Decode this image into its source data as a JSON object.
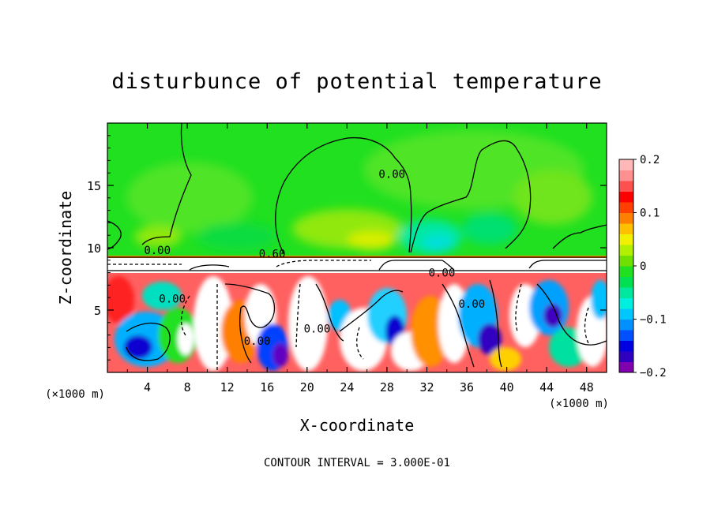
{
  "chart_data": {
    "type": "heatmap",
    "title": "disturbunce of potential temperature",
    "xlabel": "X-coordinate",
    "ylabel": "Z-coordinate",
    "x_unit": "(×1000 m)",
    "z_unit": "(×1000 m)",
    "xlim": [
      0,
      50
    ],
    "ylim": [
      0,
      20
    ],
    "x_ticks": [
      4,
      8,
      12,
      16,
      20,
      24,
      28,
      32,
      36,
      40,
      44,
      48
    ],
    "y_ticks": [
      5,
      10,
      15
    ],
    "colorbar": {
      "range": [
        -0.2,
        0.2
      ],
      "ticks": [
        0.2,
        0.1,
        0,
        -0.1,
        -0.2
      ],
      "tick_labels": [
        "0.2",
        "0.1",
        "0",
        "−0.1",
        "−0.2"
      ],
      "colors": [
        "#8000b0",
        "#3000c0",
        "#0000e0",
        "#0050ff",
        "#0090ff",
        "#00c8ff",
        "#00f0e0",
        "#00e8a0",
        "#00e050",
        "#20e020",
        "#70e000",
        "#b0f000",
        "#f0f000",
        "#ffc000",
        "#ff8000",
        "#ff4000",
        "#ff0000",
        "#ff5050",
        "#ff9090",
        "#ffb8b8"
      ]
    },
    "contour_labels": [
      {
        "text": "0.00",
        "x": 5.0,
        "z": 9.5
      },
      {
        "text": "0.60",
        "x": 16.5,
        "z": 9.2
      },
      {
        "text": "0.00",
        "x": 28.5,
        "z": 15.6
      },
      {
        "text": "0.00",
        "x": 33.5,
        "z": 7.7
      },
      {
        "text": "0.00",
        "x": 6.5,
        "z": 5.6
      },
      {
        "text": "0.00",
        "x": 36.5,
        "z": 5.2
      },
      {
        "text": "0.00",
        "x": 21.0,
        "z": 3.2
      },
      {
        "text": "0.00",
        "x": 15.0,
        "z": 2.2
      }
    ],
    "contour_interval_text": "CONTOUR INTERVAL = 3.000E-01"
  }
}
